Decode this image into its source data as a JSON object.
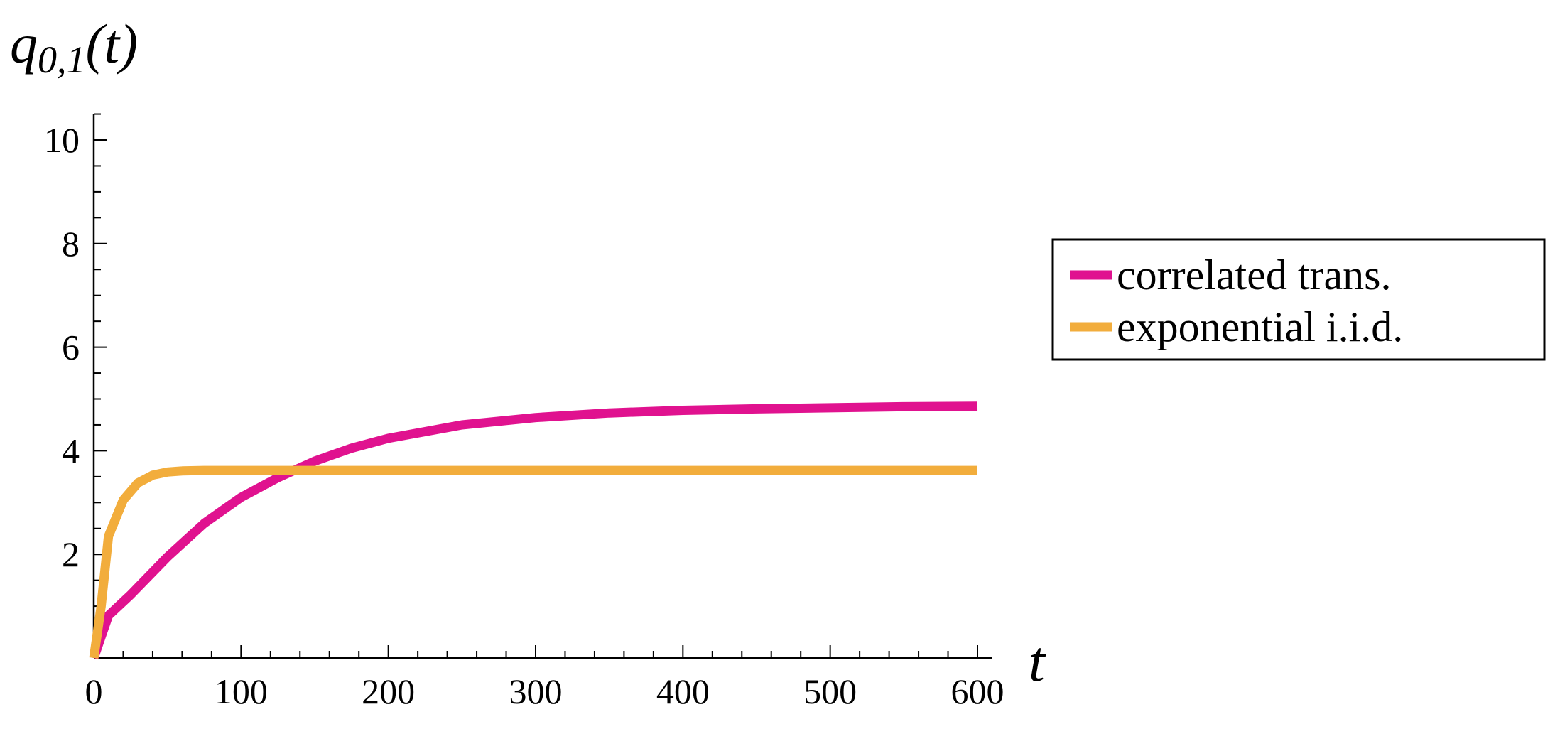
{
  "chart_data": {
    "type": "line",
    "ylabel": "q0,1(t)",
    "ylabel_main": "q",
    "ylabel_sub": "0,1",
    "ylabel_arg": "(t)",
    "xlabel": "t",
    "xlim": [
      0,
      600
    ],
    "ylim": [
      0,
      10.5
    ],
    "x_ticks": [
      0,
      100,
      200,
      300,
      400,
      500,
      600
    ],
    "x_tick_labels": [
      "0",
      "100",
      "200",
      "300",
      "400",
      "500",
      "600"
    ],
    "y_ticks": [
      2,
      4,
      6,
      8,
      10
    ],
    "y_tick_labels": [
      "2",
      "4",
      "6",
      "8",
      "10"
    ],
    "legend_position": "right",
    "series": [
      {
        "name": "correlated trans.",
        "color": "#e0128f",
        "x": [
          0,
          10,
          25,
          50,
          75,
          100,
          125,
          150,
          175,
          200,
          250,
          300,
          350,
          400,
          450,
          500,
          550,
          600
        ],
        "y": [
          0,
          0.82,
          1.22,
          1.95,
          2.6,
          3.1,
          3.48,
          3.8,
          4.05,
          4.24,
          4.5,
          4.64,
          4.73,
          4.78,
          4.81,
          4.83,
          4.85,
          4.86
        ]
      },
      {
        "name": "exponential i.i.d.",
        "color": "#f2ad3c",
        "x": [
          0,
          5,
          10,
          20,
          30,
          40,
          50,
          60,
          75,
          100,
          150,
          200,
          300,
          400,
          500,
          600
        ],
        "y": [
          0,
          1.0,
          2.35,
          3.05,
          3.38,
          3.53,
          3.59,
          3.61,
          3.62,
          3.62,
          3.62,
          3.62,
          3.62,
          3.62,
          3.62,
          3.62
        ]
      }
    ]
  }
}
